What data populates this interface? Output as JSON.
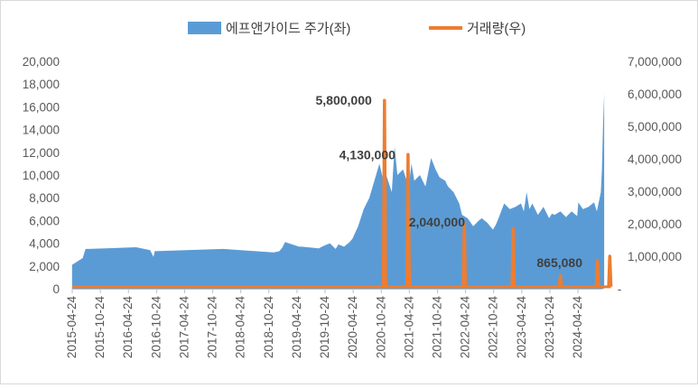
{
  "chart_data": {
    "type": "area+line",
    "title": "",
    "colors": {
      "price": "#5b9bd5",
      "volume": "#ed7d31",
      "axis": "#595959",
      "border": "#d9d9d9"
    },
    "legend": {
      "position": "top-center",
      "entries": [
        {
          "name": "에프앤가이드 주가(좌)",
          "kind": "area"
        },
        {
          "name": "거래량(우)",
          "kind": "line"
        }
      ]
    },
    "y_left": {
      "min": 0,
      "max": 20000,
      "ticks": [
        "0",
        "2,000",
        "4,000",
        "6,000",
        "8,000",
        "10,000",
        "12,000",
        "14,000",
        "16,000",
        "18,000",
        "20,000"
      ]
    },
    "y_right": {
      "min": 0,
      "max": 7000000,
      "ticks": [
        "-",
        "1,000,000",
        "2,000,000",
        "3,000,000",
        "4,000,000",
        "5,000,000",
        "6,000,000",
        "7,000,000"
      ]
    },
    "x_range": [
      "2015-04-24",
      "2024-09-30"
    ],
    "x_ticks": [
      "2015-04-24",
      "2015-10-24",
      "2016-04-24",
      "2016-10-24",
      "2017-04-24",
      "2017-10-24",
      "2018-04-24",
      "2018-10-24",
      "2019-04-24",
      "2019-10-24",
      "2020-04-24",
      "2020-10-24",
      "2021-04-24",
      "2021-10-24",
      "2022-04-24",
      "2022-10-24",
      "2023-04-24",
      "2023-10-24",
      "2024-04-24"
    ],
    "price_series": {
      "name": "에프앤가이드 주가(좌)",
      "x": [
        2015.31,
        2015.5,
        2015.55,
        2015.6,
        2016.45,
        2016.7,
        2016.76,
        2016.78,
        2018.0,
        2018.9,
        2019.0,
        2019.05,
        2019.1,
        2019.35,
        2019.4,
        2019.7,
        2019.8,
        2019.9,
        2020.0,
        2020.05,
        2020.15,
        2020.25,
        2020.3,
        2020.4,
        2020.5,
        2020.6,
        2020.75,
        2020.78,
        2020.85,
        2020.9,
        2021.0,
        2021.05,
        2021.1,
        2021.2,
        2021.3,
        2021.35,
        2021.4,
        2021.5,
        2021.6,
        2021.7,
        2021.78,
        2021.85,
        2021.95,
        2022.0,
        2022.1,
        2022.2,
        2022.25,
        2022.35,
        2022.45,
        2022.55,
        2022.6,
        2022.7,
        2022.8,
        2022.85,
        2022.9,
        2023.0,
        2023.1,
        2023.2,
        2023.3,
        2023.35,
        2023.4,
        2023.45,
        2023.5,
        2023.55,
        2023.6,
        2023.7,
        2023.8,
        2023.85,
        2023.9,
        2024.0,
        2024.1,
        2024.2,
        2024.3,
        2024.32,
        2024.4,
        2024.5,
        2024.6,
        2024.65,
        2024.7,
        2024.72,
        2024.74,
        2024.76,
        2024.78
      ],
      "y": [
        2100,
        2700,
        3500,
        3500,
        3650,
        3400,
        2800,
        3300,
        3500,
        3200,
        3300,
        3600,
        4100,
        3700,
        3700,
        3550,
        3800,
        4000,
        3500,
        3900,
        3700,
        4100,
        4400,
        5500,
        7000,
        8000,
        10500,
        11000,
        9500,
        10000,
        8500,
        12500,
        10000,
        10500,
        9000,
        11000,
        9500,
        10000,
        9000,
        11500,
        10500,
        9800,
        9500,
        9000,
        8500,
        7500,
        6500,
        6200,
        5500,
        6000,
        6200,
        5800,
        5200,
        5600,
        6200,
        7500,
        7000,
        7200,
        7500,
        6800,
        8500,
        7000,
        7500,
        7000,
        6500,
        7200,
        6200,
        6600,
        6500,
        6800,
        6300,
        6800,
        6400,
        7600,
        7000,
        7200,
        7600,
        6800,
        8000,
        8500,
        10500,
        14500,
        17200
      ]
    },
    "volume_series": {
      "name": "거래량(우)",
      "x": [
        2020.85,
        2020.87,
        2020.89,
        2020.91,
        2021.27,
        2021.29,
        2021.31,
        2021.33,
        2022.27,
        2022.29,
        2022.31,
        2023.14,
        2023.16,
        2023.18,
        2023.98,
        2024.0,
        2024.02,
        2024.64,
        2024.66,
        2024.68,
        2024.86,
        2024.88,
        2024.9
      ],
      "y": [
        0,
        5800000,
        300000,
        0,
        0,
        4130000,
        600000,
        0,
        0,
        2040000,
        0,
        0,
        1850000,
        0,
        0,
        400000,
        0,
        0,
        865080,
        0,
        0,
        1000000,
        0
      ],
      "baseline": 60000,
      "labels": [
        {
          "x": 2020.87,
          "value": 5800000,
          "text": "5,800,000"
        },
        {
          "x": 2021.29,
          "value": 4130000,
          "text": "4,130,000"
        },
        {
          "x": 2022.29,
          "value": 2040000,
          "text": "2,040,000"
        },
        {
          "x": 2024.66,
          "value": 865080,
          "text": "865,080"
        }
      ]
    }
  }
}
